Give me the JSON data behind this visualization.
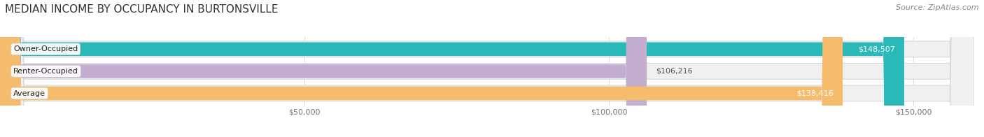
{
  "title": "MEDIAN INCOME BY OCCUPANCY IN BURTONSVILLE",
  "source": "Source: ZipAtlas.com",
  "categories": [
    "Owner-Occupied",
    "Renter-Occupied",
    "Average"
  ],
  "values": [
    148507,
    106216,
    138416
  ],
  "bar_colors": [
    "#2ab8b8",
    "#c4aed0",
    "#f5bc6e"
  ],
  "value_labels": [
    "$148,507",
    "$106,216",
    "$138,416"
  ],
  "value_inside": [
    true,
    false,
    true
  ],
  "xlim": [
    0,
    160000
  ],
  "xticks": [
    50000,
    100000,
    150000
  ],
  "xticklabels": [
    "$50,000",
    "$100,000",
    "$150,000"
  ],
  "bg_color": "#ffffff",
  "bar_bg_color": "#f0f0f0",
  "bar_bg_edge_color": "#d8d8d8",
  "title_fontsize": 11,
  "source_fontsize": 8,
  "label_fontsize": 8,
  "tick_fontsize": 8,
  "value_label_fontsize": 8,
  "value_inside_color": "white",
  "value_outside_color": "#555555"
}
